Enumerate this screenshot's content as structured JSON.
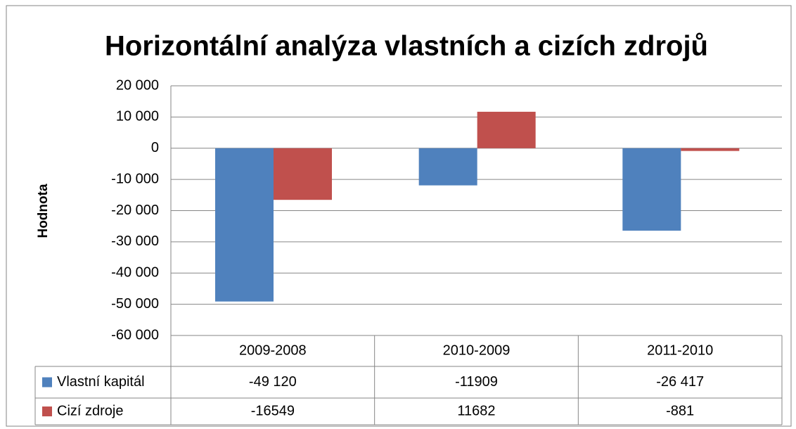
{
  "chart_data": {
    "type": "bar",
    "title": "Horizontální analýza vlastních a cizích zdrojů",
    "ylabel": "Hodnota",
    "categories": [
      "2009-2008",
      "2010-2009",
      "2011-2010"
    ],
    "series": [
      {
        "name": "Vlastní kapitál",
        "color": "#4f81bd",
        "values": [
          -49120,
          -11909,
          -26417
        ],
        "value_labels": [
          "-49 120",
          "-11909",
          "-26 417"
        ]
      },
      {
        "name": "Cizí zdroje",
        "color": "#c0504d",
        "values": [
          -16549,
          11682,
          -881
        ],
        "value_labels": [
          "-16549",
          "11682",
          "-881"
        ]
      }
    ],
    "ylim": [
      -60000,
      20000
    ],
    "yticks": [
      {
        "value": 20000,
        "label": "20 000"
      },
      {
        "value": 10000,
        "label": "10 000"
      },
      0,
      {
        "value": -10000,
        "label": "-10 000"
      },
      {
        "value": -20000,
        "label": "-20 000"
      },
      {
        "value": -30000,
        "label": "-30 000"
      },
      {
        "value": -40000,
        "label": "-40 000"
      },
      {
        "value": -50000,
        "label": "-50 000"
      },
      {
        "value": -60000,
        "label": "-60 000"
      }
    ],
    "grid": true
  }
}
